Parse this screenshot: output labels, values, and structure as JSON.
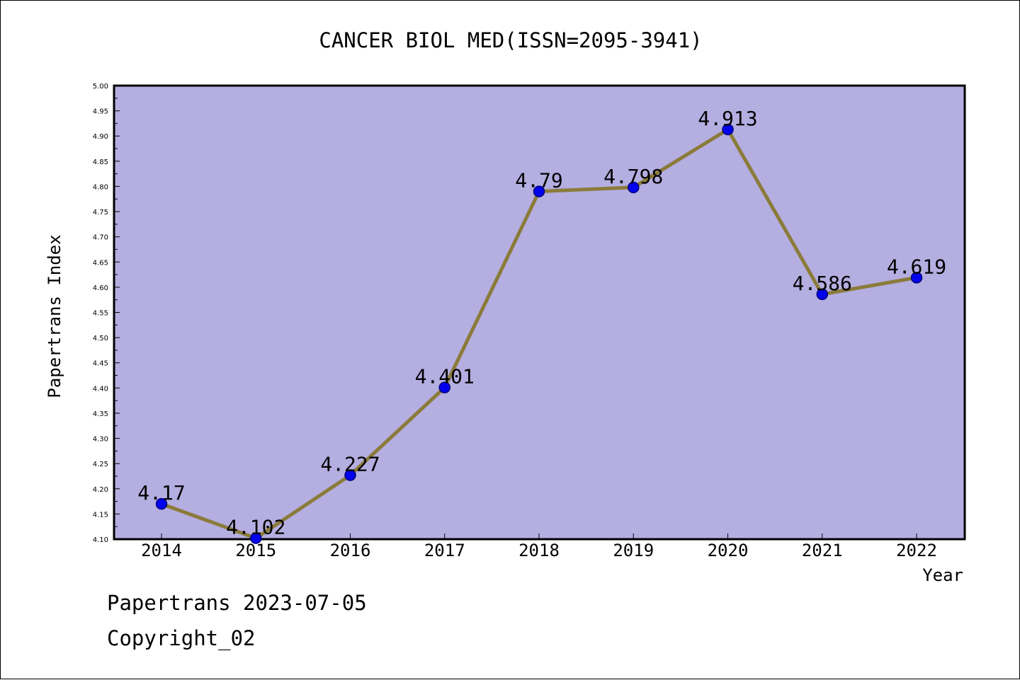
{
  "chart_data": {
    "type": "line",
    "title": "CANCER BIOL MED(ISSN=2095-3941)",
    "xlabel": "Year",
    "ylabel": "Papertrans Index",
    "x": [
      "2014",
      "2015",
      "2016",
      "2017",
      "2018",
      "2019",
      "2020",
      "2021",
      "2022"
    ],
    "series": [
      {
        "values": [
          4.17,
          4.102,
          4.227,
          4.401,
          4.79,
          4.798,
          4.913,
          4.586,
          4.619
        ],
        "labels": [
          "4.17",
          "4.102",
          "4.227",
          "4.401",
          "4.79",
          "4.798",
          "4.913",
          "4.586",
          "4.619"
        ]
      }
    ],
    "ylim": [
      4.1,
      5.0
    ],
    "yticks": [
      "4.10",
      "4.15",
      "4.20",
      "4.25",
      "4.30",
      "4.35",
      "4.40",
      "4.45",
      "4.50",
      "4.55",
      "4.60",
      "4.65",
      "4.70",
      "4.75",
      "4.80",
      "4.85",
      "4.90",
      "4.95",
      "5.00"
    ],
    "grid": false,
    "colors": {
      "plot_background": "#b4aee1",
      "line": "#8b7b3a",
      "marker_fill": "#0000ee",
      "marker_edge": "#00007a"
    }
  },
  "footer": {
    "date_line": "Papertrans 2023-07-05",
    "copyright_line": "Copyright_02"
  }
}
